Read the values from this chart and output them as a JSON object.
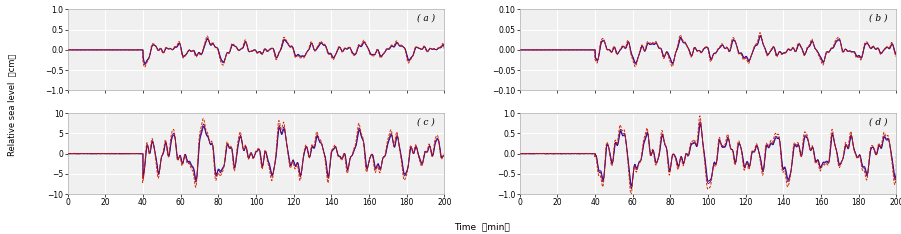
{
  "subplots": [
    {
      "label": "( a )",
      "ylim": [
        -1,
        1
      ],
      "yticks": [
        -1,
        -0.5,
        0,
        0.5,
        1
      ]
    },
    {
      "label": "( b )",
      "ylim": [
        -0.1,
        0.1
      ],
      "yticks": [
        -0.1,
        -0.05,
        0,
        0.05,
        0.1
      ]
    },
    {
      "label": "( c )",
      "ylim": [
        -10,
        10
      ],
      "yticks": [
        -10,
        -5,
        0,
        5,
        10
      ]
    },
    {
      "label": "( d )",
      "ylim": [
        -1,
        1
      ],
      "yticks": [
        -1,
        -0.5,
        0,
        0.5,
        1
      ]
    }
  ],
  "amplitudes": [
    0.32,
    0.038,
    8.5,
    0.85
  ],
  "xlim": [
    0,
    200
  ],
  "xticks": [
    0,
    20,
    40,
    60,
    80,
    100,
    120,
    140,
    160,
    180,
    200
  ],
  "color_red": "#cc2200",
  "color_purple": "#770055",
  "color_blue": "#1111bb",
  "bg_color": "#f0f0f0",
  "grid_color": "#ffffff",
  "start_min": 40
}
